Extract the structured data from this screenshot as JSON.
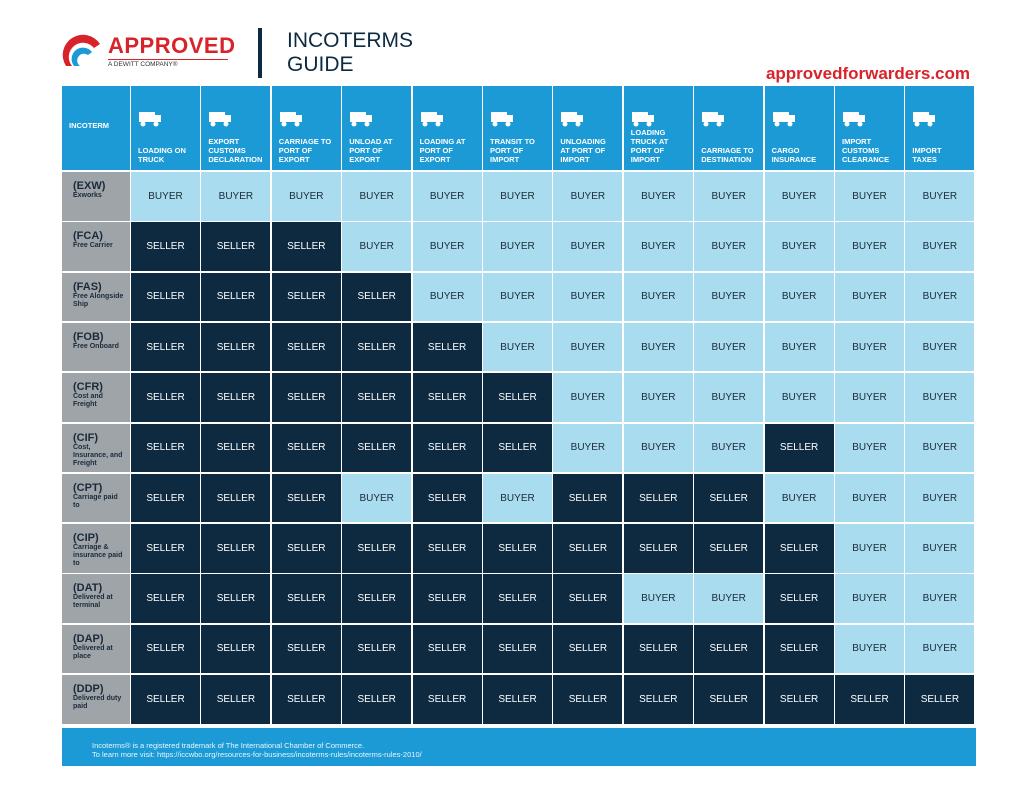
{
  "header": {
    "logo": "APPROVED",
    "logo_tagline": "A DEWITT COMPANY®",
    "title": "INCOTERMS GUIDE",
    "website": "approvedforwarders.com"
  },
  "table": {
    "corner": "INCOTERM",
    "columns": [
      "LOADING ON TRUCK",
      "EXPORT CUSTOMS DECLARATION",
      "CARRIAGE TO PORT OF EXPORT",
      "UNLOAD AT PORT OF EXPORT",
      "LOADING AT PORT OF EXPORT",
      "TRANSIT TO PORT OF IMPORT",
      "UNLOADING AT PORT OF IMPORT",
      "LOADING TRUCK AT PORT OF IMPORT",
      "CARRIAGE TO DESTINATION",
      "CARGO INSURANCE",
      "IMPORT CUSTOMS CLEARANCE",
      "IMPORT TAXES"
    ],
    "rows": [
      {
        "code": "(EXW)",
        "name": "Exworks",
        "cells": [
          "BUYER",
          "BUYER",
          "BUYER",
          "BUYER",
          "BUYER",
          "BUYER",
          "BUYER",
          "BUYER",
          "BUYER",
          "BUYER",
          "BUYER",
          "BUYER"
        ]
      },
      {
        "code": "(FCA)",
        "name": "Free Carrier",
        "cells": [
          "SELLER",
          "SELLER",
          "SELLER",
          "BUYER",
          "BUYER",
          "BUYER",
          "BUYER",
          "BUYER",
          "BUYER",
          "BUYER",
          "BUYER",
          "BUYER"
        ]
      },
      {
        "code": "(FAS)",
        "name": "Free Alongside Ship",
        "cells": [
          "SELLER",
          "SELLER",
          "SELLER",
          "SELLER",
          "BUYER",
          "BUYER",
          "BUYER",
          "BUYER",
          "BUYER",
          "BUYER",
          "BUYER",
          "BUYER"
        ]
      },
      {
        "code": "(FOB)",
        "name": "Free Onboard",
        "cells": [
          "SELLER",
          "SELLER",
          "SELLER",
          "SELLER",
          "SELLER",
          "BUYER",
          "BUYER",
          "BUYER",
          "BUYER",
          "BUYER",
          "BUYER",
          "BUYER"
        ]
      },
      {
        "code": "(CFR)",
        "name": "Cost and Freight",
        "cells": [
          "SELLER",
          "SELLER",
          "SELLER",
          "SELLER",
          "SELLER",
          "SELLER",
          "BUYER",
          "BUYER",
          "BUYER",
          "BUYER",
          "BUYER",
          "BUYER"
        ]
      },
      {
        "code": "(CIF)",
        "name": "Cost, Insurance, and Freight",
        "cells": [
          "SELLER",
          "SELLER",
          "SELLER",
          "SELLER",
          "SELLER",
          "SELLER",
          "BUYER",
          "BUYER",
          "BUYER",
          "SELLER",
          "BUYER",
          "BUYER"
        ]
      },
      {
        "code": "(CPT)",
        "name": "Carriage paid to",
        "cells": [
          "SELLER",
          "SELLER",
          "SELLER",
          "BUYER",
          "SELLER",
          "BUYER",
          "SELLER",
          "SELLER",
          "SELLER",
          "BUYER",
          "BUYER",
          "BUYER"
        ]
      },
      {
        "code": "(CIP)",
        "name": "Carriage & insurance paid to",
        "cells": [
          "SELLER",
          "SELLER",
          "SELLER",
          "SELLER",
          "SELLER",
          "SELLER",
          "SELLER",
          "SELLER",
          "SELLER",
          "SELLER",
          "BUYER",
          "BUYER"
        ]
      },
      {
        "code": "(DAT)",
        "name": "Delivered at terminal",
        "cells": [
          "SELLER",
          "SELLER",
          "SELLER",
          "SELLER",
          "SELLER",
          "SELLER",
          "SELLER",
          "BUYER",
          "BUYER",
          "SELLER",
          "BUYER",
          "BUYER"
        ]
      },
      {
        "code": "(DAP)",
        "name": "Delivered at place",
        "cells": [
          "SELLER",
          "SELLER",
          "SELLER",
          "SELLER",
          "SELLER",
          "SELLER",
          "SELLER",
          "SELLER",
          "SELLER",
          "SELLER",
          "BUYER",
          "BUYER"
        ]
      },
      {
        "code": "(DDP)",
        "name": "Delivered duty paid",
        "cells": [
          "SELLER",
          "SELLER",
          "SELLER",
          "SELLER",
          "SELLER",
          "SELLER",
          "SELLER",
          "SELLER",
          "SELLER",
          "SELLER",
          "SELLER",
          "SELLER"
        ]
      }
    ]
  },
  "footer": {
    "lines": [
      "Incoterms® is a registered trademark of The International Chamber of Commerce.",
      "To learn more visit: https://iccwbo.org/resources-for-business/incoterms-rules/incoterms-rules-2010/"
    ]
  }
}
